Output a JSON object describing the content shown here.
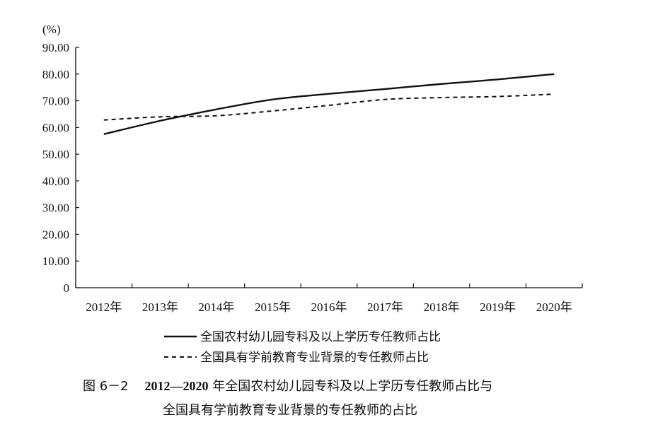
{
  "chart_data": {
    "type": "line",
    "unit_label": "(%)",
    "categories": [
      "2012年",
      "2013年",
      "2014年",
      "2015年",
      "2016年",
      "2017年",
      "2018年",
      "2019年",
      "2020年"
    ],
    "y_ticks": [
      "0",
      "10.00",
      "20.00",
      "30.00",
      "40.00",
      "50.00",
      "60.00",
      "70.00",
      "80.00",
      "90.00"
    ],
    "ylim": [
      0,
      90
    ],
    "grid": false,
    "legend_position": "bottom",
    "series": [
      {
        "name": "全国农村幼儿园专科及以上学历专任教师占比",
        "style": "solid",
        "color": "#111111",
        "values": [
          57.5,
          62.5,
          66.8,
          70.5,
          72.6,
          74.4,
          76.3,
          78.0,
          80.0
        ]
      },
      {
        "name": "全国具有学前教育专业背景的专任教师占比",
        "style": "dashed",
        "color": "#111111",
        "values": [
          62.8,
          64.0,
          64.4,
          66.2,
          68.3,
          70.5,
          71.2,
          71.6,
          72.5
        ]
      }
    ]
  },
  "caption": {
    "figure_no": "图 6－2",
    "years": "2012—2020",
    "line1_rest": "年全国农村幼儿园专科及以上学历专任教师占比与",
    "line2": "全国具有学前教育专业背景的专任教师的占比"
  }
}
